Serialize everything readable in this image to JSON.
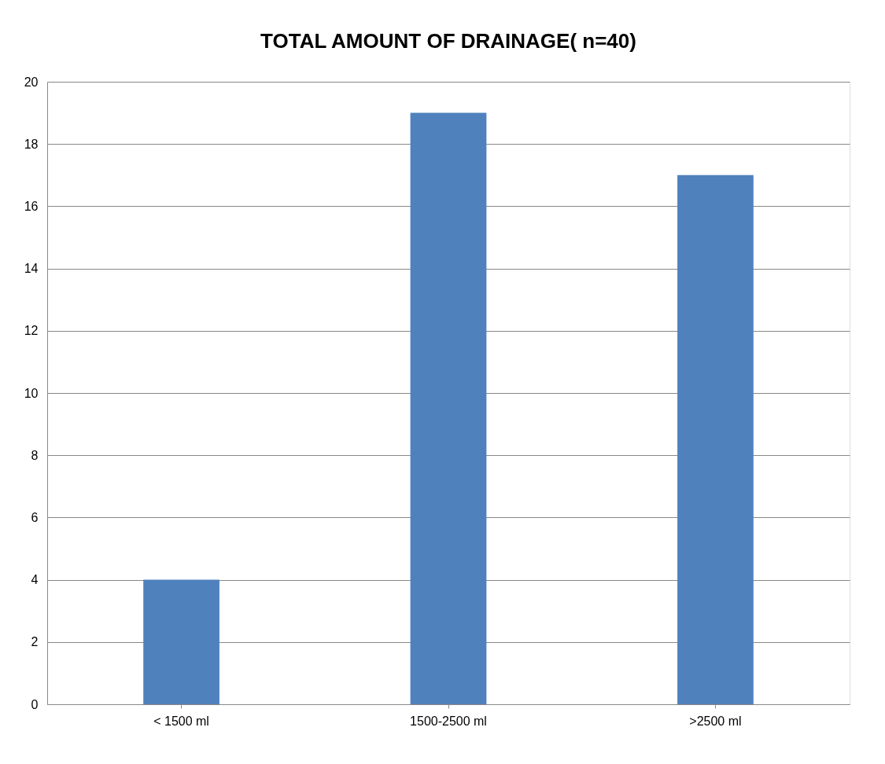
{
  "chart_data": {
    "type": "bar",
    "title": "TOTAL AMOUNT OF DRAINAGE( n=40)",
    "categories": [
      "< 1500 ml",
      "1500-2500 ml",
      ">2500 ml"
    ],
    "values": [
      4,
      19,
      17
    ],
    "color": "#4f81bd",
    "ylim": [
      0,
      20
    ],
    "yticks": [
      0,
      2,
      4,
      6,
      8,
      10,
      12,
      14,
      16,
      18,
      20
    ],
    "grid": "y"
  }
}
